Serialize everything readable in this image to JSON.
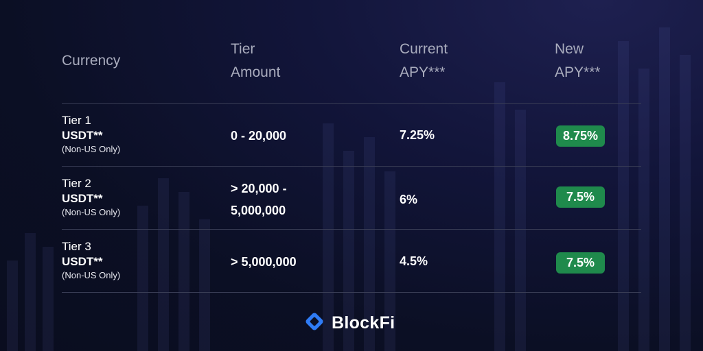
{
  "headers": {
    "currency": "Currency",
    "tier_amount": [
      "Tier",
      "Amount"
    ],
    "current_apy": [
      "Current",
      "APY***"
    ],
    "new_apy": [
      "New",
      "APY***"
    ]
  },
  "rows": [
    {
      "tier": "Tier 1",
      "currency": "USDT**",
      "note": "(Non-US Only)",
      "amount": [
        "0 - 20,000"
      ],
      "current_apy": "7.25%",
      "new_apy": "8.75%"
    },
    {
      "tier": "Tier 2",
      "currency": "USDT**",
      "note": "(Non-US Only)",
      "amount": [
        "> 20,000 -",
        "5,000,000"
      ],
      "current_apy": "6%",
      "new_apy": "7.5%"
    },
    {
      "tier": "Tier 3",
      "currency": "USDT**",
      "note": "(Non-US Only)",
      "amount": [
        "> 5,000,000"
      ],
      "current_apy": "4.5%",
      "new_apy": "7.5%"
    }
  ],
  "footer": {
    "brand": "BlockFi",
    "icon": "blockfi-logo-icon"
  },
  "colors": {
    "badge": "#1f8a4c",
    "header_text": "#a9acbd",
    "logo_blue": "#2f7cf6"
  }
}
